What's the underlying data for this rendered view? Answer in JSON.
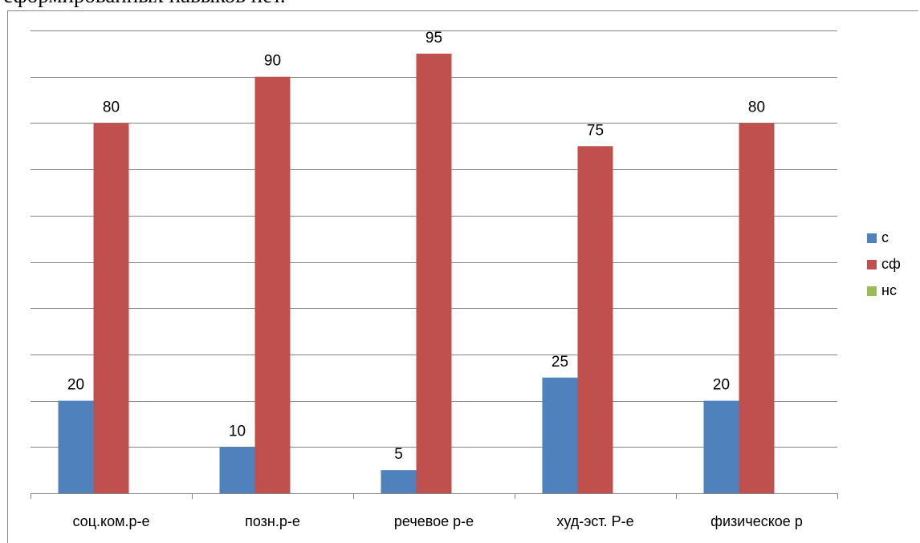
{
  "page_text": {
    "top_fragment": "сформированных навыков нет."
  },
  "chart_data": {
    "type": "bar",
    "categories": [
      "соц.ком.р-е",
      "позн.р-е",
      "речевое р-е",
      "худ-эст. Р-е",
      "физическое р"
    ],
    "series": [
      {
        "name": "с",
        "values": [
          20,
          10,
          5,
          25,
          20
        ],
        "color": "#4f81bd"
      },
      {
        "name": "сф",
        "values": [
          80,
          90,
          95,
          75,
          80
        ],
        "color": "#c0504d"
      },
      {
        "name": "нс",
        "values": [
          0,
          0,
          0,
          0,
          0
        ],
        "color": "#9bbb59"
      }
    ],
    "ylim": [
      0,
      100
    ],
    "ytick_step": 10,
    "grid": true,
    "legend_position": "right",
    "data_labels_shown": {
      "с": true,
      "сф": true,
      "нс": false
    },
    "title": "",
    "xlabel": "",
    "ylabel": ""
  }
}
